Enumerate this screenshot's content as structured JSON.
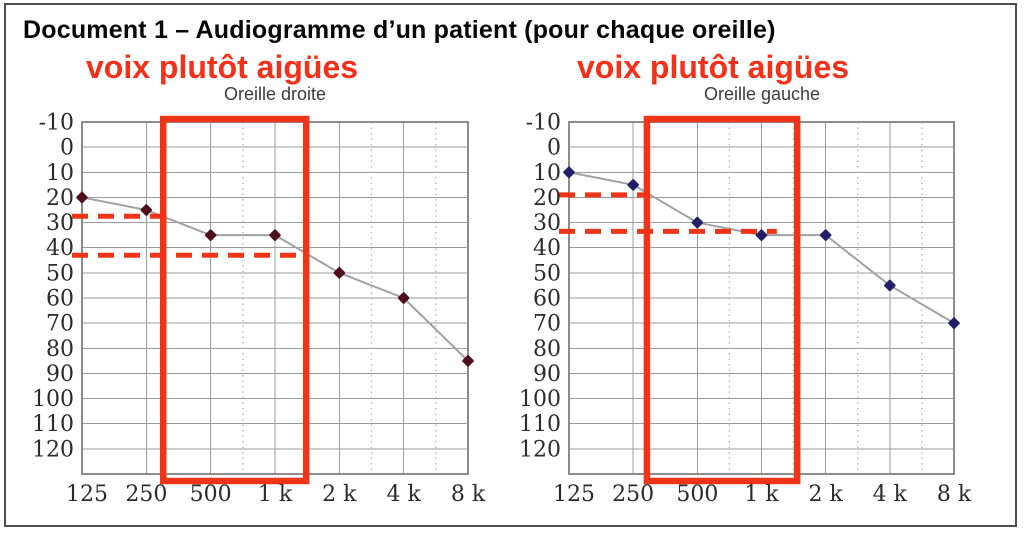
{
  "document": {
    "title": "Document 1 – Audiogramme d’un patient (pour chaque oreille)"
  },
  "colors": {
    "annotation_red": "#f03418",
    "heading_red": "#f43019",
    "right_ear_marker": "#4e0e1b",
    "left_ear_marker": "#221f66",
    "curve_gray": "#a0a0a8",
    "grid_gray": "#9b9b9b",
    "grid_dotted_gray": "#b5b5b5",
    "plot_border_gray": "#8c8c8c",
    "axis_text": "#2b2b2b",
    "frame_border": "#4e4e4e"
  },
  "chart_data": [
    {
      "type": "line",
      "title": "Oreille droite",
      "heading": "voix plutôt aigües",
      "x_categories": [
        "125",
        "250",
        "500",
        "1 k",
        "2 k",
        "4 k",
        "8 k"
      ],
      "x_frequencies_hz": [
        125,
        250,
        500,
        1000,
        2000,
        4000,
        8000
      ],
      "y_ticks": [
        -10,
        0,
        10,
        20,
        30,
        40,
        50,
        60,
        70,
        80,
        90,
        100,
        110,
        120
      ],
      "ylim": [
        -10,
        130
      ],
      "y_inverted": true,
      "grid": true,
      "series": [
        {
          "marker_color": "#4e0e1b",
          "line_color": "#a0a0a8",
          "values": [
            20,
            25,
            35,
            35,
            50,
            60,
            85
          ]
        }
      ],
      "highlight_band": {
        "from_hz": 300,
        "to_hz": 1400,
        "color": "#f03418"
      },
      "threshold_lines": [
        {
          "db": 27.5,
          "from": "axis",
          "to_hz": 300,
          "style": "dashed",
          "color": "#f03418"
        },
        {
          "db": 43,
          "from": "axis",
          "to_hz": 1390,
          "style": "dashed",
          "color": "#f03418"
        }
      ]
    },
    {
      "type": "line",
      "title": "Oreille gauche",
      "heading": "voix plutôt aigües",
      "x_categories": [
        "125",
        "250",
        "500",
        "1 k",
        "2 k",
        "4 k",
        "8 k"
      ],
      "x_frequencies_hz": [
        125,
        250,
        500,
        1000,
        2000,
        4000,
        8000
      ],
      "y_ticks": [
        -10,
        0,
        10,
        20,
        30,
        40,
        50,
        60,
        70,
        80,
        90,
        100,
        110,
        120
      ],
      "ylim": [
        -10,
        130
      ],
      "y_inverted": true,
      "grid": true,
      "series": [
        {
          "marker_color": "#221f66",
          "line_color": "#a0a0a8",
          "values": [
            10,
            15,
            30,
            35,
            35,
            55,
            70
          ]
        }
      ],
      "highlight_band": {
        "from_hz": 290,
        "to_hz": 1470,
        "color": "#f03418"
      },
      "threshold_lines": [
        {
          "db": 19,
          "from": "axis",
          "to_hz": 300,
          "style": "dashed",
          "color": "#f03418"
        },
        {
          "db": 33.5,
          "from": "axis",
          "to_hz": 1180,
          "style": "dashed",
          "color": "#f03418"
        }
      ]
    }
  ]
}
